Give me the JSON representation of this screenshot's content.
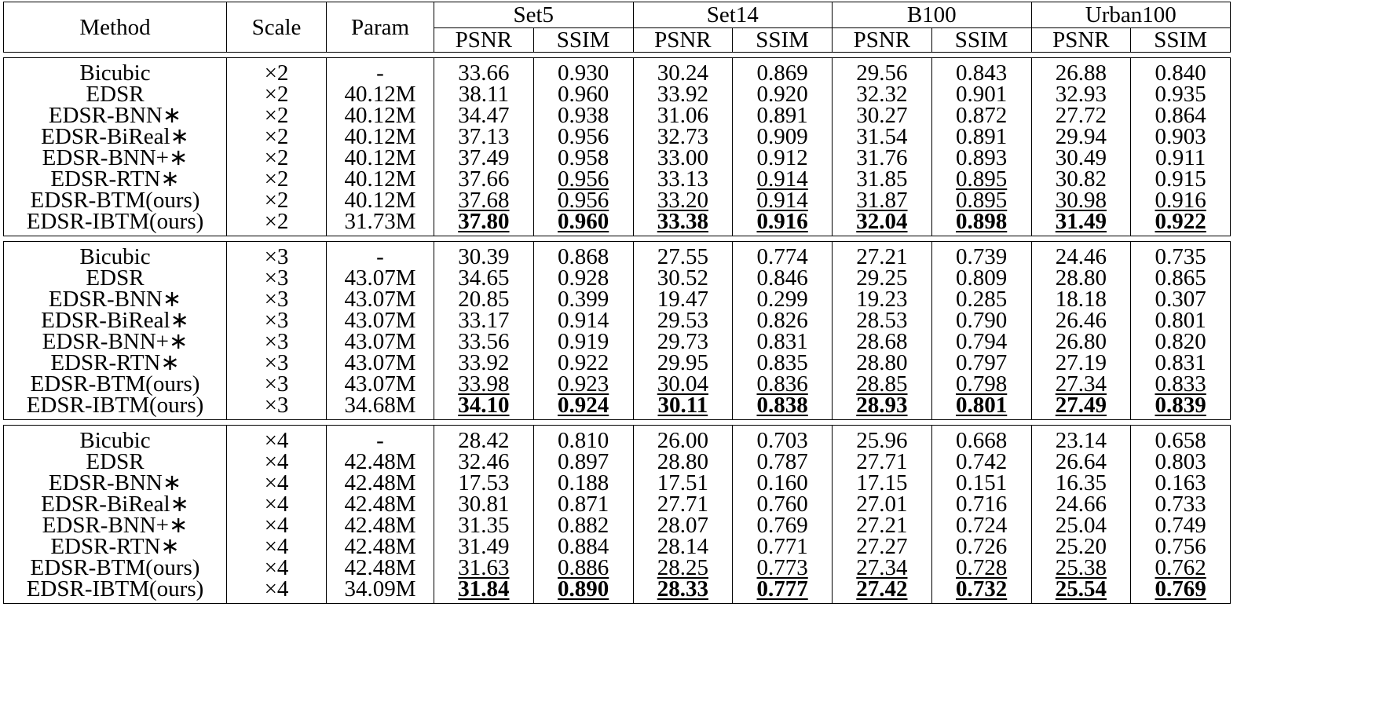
{
  "headers": {
    "method": "Method",
    "scale": "Scale",
    "param": "Param",
    "datasets": [
      "Set5",
      "Set14",
      "B100",
      "Urban100"
    ],
    "metrics": [
      "PSNR",
      "SSIM"
    ]
  },
  "groups": [
    {
      "scale": "×2",
      "rows": [
        {
          "method": "Bicubic",
          "param": "-",
          "values": [
            "33.66",
            "0.930",
            "30.24",
            "0.869",
            "29.56",
            "0.843",
            "26.88",
            "0.840"
          ]
        },
        {
          "method": "EDSR",
          "param": "40.12M",
          "values": [
            "38.11",
            "0.960",
            "33.92",
            "0.920",
            "32.32",
            "0.901",
            "32.93",
            "0.935"
          ]
        },
        {
          "method": "EDSR-BNN∗",
          "param": "40.12M",
          "values": [
            "34.47",
            "0.938",
            "31.06",
            "0.891",
            "30.27",
            "0.872",
            "27.72",
            "0.864"
          ]
        },
        {
          "method": "EDSR-BiReal∗",
          "param": "40.12M",
          "values": [
            "37.13",
            "0.956",
            "32.73",
            "0.909",
            "31.54",
            "0.891",
            "29.94",
            "0.903"
          ]
        },
        {
          "method": "EDSR-BNN+∗",
          "param": "40.12M",
          "values": [
            "37.49",
            "0.958",
            "33.00",
            "0.912",
            "31.76",
            "0.893",
            "30.49",
            "0.911"
          ]
        },
        {
          "method": "EDSR-RTN∗",
          "param": "40.12M",
          "values": [
            "37.66",
            "0.956",
            "33.13",
            "0.914",
            "31.85",
            "0.895",
            "30.82",
            "0.915"
          ],
          "underline": [
            1,
            3,
            5
          ]
        },
        {
          "method": "EDSR-BTM(ours)",
          "param": "40.12M",
          "values": [
            "37.68",
            "0.956",
            "33.20",
            "0.914",
            "31.87",
            "0.895",
            "30.98",
            "0.916"
          ],
          "underline": [
            0,
            1,
            2,
            3,
            4,
            5,
            6,
            7
          ]
        },
        {
          "method": "EDSR-IBTM(ours)",
          "param": "31.73M",
          "values": [
            "37.80",
            "0.960",
            "33.38",
            "0.916",
            "32.04",
            "0.898",
            "31.49",
            "0.922"
          ],
          "bold": true
        }
      ]
    },
    {
      "scale": "×3",
      "rows": [
        {
          "method": "Bicubic",
          "param": "-",
          "values": [
            "30.39",
            "0.868",
            "27.55",
            "0.774",
            "27.21",
            "0.739",
            "24.46",
            "0.735"
          ]
        },
        {
          "method": "EDSR",
          "param": "43.07M",
          "values": [
            "34.65",
            "0.928",
            "30.52",
            "0.846",
            "29.25",
            "0.809",
            "28.80",
            "0.865"
          ]
        },
        {
          "method": "EDSR-BNN∗",
          "param": "43.07M",
          "values": [
            "20.85",
            "0.399",
            "19.47",
            "0.299",
            "19.23",
            "0.285",
            "18.18",
            "0.307"
          ]
        },
        {
          "method": "EDSR-BiReal∗",
          "param": "43.07M",
          "values": [
            "33.17",
            "0.914",
            "29.53",
            "0.826",
            "28.53",
            "0.790",
            "26.46",
            "0.801"
          ]
        },
        {
          "method": "EDSR-BNN+∗",
          "param": "43.07M",
          "values": [
            "33.56",
            "0.919",
            "29.73",
            "0.831",
            "28.68",
            "0.794",
            "26.80",
            "0.820"
          ]
        },
        {
          "method": "EDSR-RTN∗",
          "param": "43.07M",
          "values": [
            "33.92",
            "0.922",
            "29.95",
            "0.835",
            "28.80",
            "0.797",
            "27.19",
            "0.831"
          ]
        },
        {
          "method": "EDSR-BTM(ours)",
          "param": "43.07M",
          "values": [
            "33.98",
            "0.923",
            "30.04",
            "0.836",
            "28.85",
            "0.798",
            "27.34",
            "0.833"
          ],
          "underline": [
            0,
            1,
            2,
            3,
            4,
            5,
            6,
            7
          ]
        },
        {
          "method": "EDSR-IBTM(ours)",
          "param": "34.68M",
          "values": [
            "34.10",
            "0.924",
            "30.11",
            "0.838",
            "28.93",
            "0.801",
            "27.49",
            "0.839"
          ],
          "bold": true
        }
      ]
    },
    {
      "scale": "×4",
      "rows": [
        {
          "method": "Bicubic",
          "param": "-",
          "values": [
            "28.42",
            "0.810",
            "26.00",
            "0.703",
            "25.96",
            "0.668",
            "23.14",
            "0.658"
          ]
        },
        {
          "method": "EDSR",
          "param": "42.48M",
          "values": [
            "32.46",
            "0.897",
            "28.80",
            "0.787",
            "27.71",
            "0.742",
            "26.64",
            "0.803"
          ]
        },
        {
          "method": "EDSR-BNN∗",
          "param": "42.48M",
          "values": [
            "17.53",
            "0.188",
            "17.51",
            "0.160",
            "17.15",
            "0.151",
            "16.35",
            "0.163"
          ]
        },
        {
          "method": "EDSR-BiReal∗",
          "param": "42.48M",
          "values": [
            "30.81",
            "0.871",
            "27.71",
            "0.760",
            "27.01",
            "0.716",
            "24.66",
            "0.733"
          ]
        },
        {
          "method": "EDSR-BNN+∗",
          "param": "42.48M",
          "values": [
            "31.35",
            "0.882",
            "28.07",
            "0.769",
            "27.21",
            "0.724",
            "25.04",
            "0.749"
          ]
        },
        {
          "method": "EDSR-RTN∗",
          "param": "42.48M",
          "values": [
            "31.49",
            "0.884",
            "28.14",
            "0.771",
            "27.27",
            "0.726",
            "25.20",
            "0.756"
          ]
        },
        {
          "method": "EDSR-BTM(ours)",
          "param": "42.48M",
          "values": [
            "31.63",
            "0.886",
            "28.25",
            "0.773",
            "27.34",
            "0.728",
            "25.38",
            "0.762"
          ],
          "underline": [
            0,
            1,
            2,
            3,
            4,
            5,
            6,
            7
          ]
        },
        {
          "method": "EDSR-IBTM(ours)",
          "param": "34.09M",
          "values": [
            "31.84",
            "0.890",
            "28.33",
            "0.777",
            "27.42",
            "0.732",
            "25.54",
            "0.769"
          ],
          "bold": true
        }
      ]
    }
  ]
}
